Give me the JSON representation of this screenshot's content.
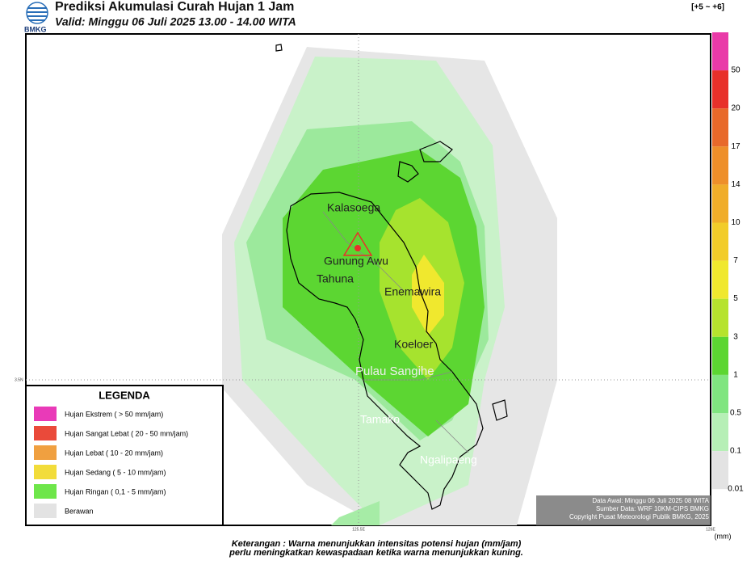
{
  "header": {
    "title": "Prediksi Akumulasi Curah Hujan 1 Jam",
    "valid": "Valid: Minggu 06 Juli 2025 13.00 - 14.00 WITA",
    "logo_text": "BMKG",
    "offset": "[+5 ~ +6]"
  },
  "map": {
    "places": [
      "Kalasoega",
      "Gunung Awu",
      "Tahuna",
      "Enemawira",
      "Koeloer",
      "Pulau Sangihe",
      "Tamako",
      "Ngalipaeng"
    ],
    "grid_labels": {
      "lat": "3.5N",
      "lon": [
        "125.5E",
        "126E"
      ]
    }
  },
  "color_scale": {
    "unit": "(mm)",
    "levels": [
      {
        "label": 50,
        "color": "#e93aa8"
      },
      {
        "label": 20,
        "color": "#e8302a"
      },
      {
        "label": 17,
        "color": "#e8692a"
      },
      {
        "label": 14,
        "color": "#ee8f2a"
      },
      {
        "label": 10,
        "color": "#f0ad2a"
      },
      {
        "label": 7,
        "color": "#f2cc2a"
      },
      {
        "label": 5,
        "color": "#f0e82e"
      },
      {
        "label": 3,
        "color": "#b6e32e"
      },
      {
        "label": 1,
        "color": "#5cd632"
      },
      {
        "label": 0.5,
        "color": "#80e580"
      },
      {
        "label": 0.1,
        "color": "#b6efb6"
      },
      {
        "label": 0.01,
        "color": "#e3e3e3"
      }
    ]
  },
  "legend": {
    "title": "LEGENDA",
    "items": [
      {
        "label": "Hujan Ekstrem ( > 50 mm/jam)",
        "color": "#e93ab8"
      },
      {
        "label": "Hujan Sangat Lebat ( 20 - 50 mm/jam)",
        "color": "#ea4a3a"
      },
      {
        "label": "Hujan Lebat ( 10 - 20 mm/jam)",
        "color": "#f0a040"
      },
      {
        "label": "Hujan Sedang ( 5 - 10 mm/jam)",
        "color": "#f2dc3a"
      },
      {
        "label": "Hujan Ringan ( 0,1 - 5 mm/jam)",
        "color": "#6ee64a"
      },
      {
        "label": "Berawan",
        "color": "#e3e3e3"
      }
    ]
  },
  "info": [
    "Data Awal: Minggu 06 Juli 2025 08 WITA",
    "Sumber Data: WRF 10KM-CIPS BMKG",
    "Copyright Pusat Meteorologi Publik BMKG, 2025"
  ],
  "footer": [
    "Keterangan : Warna menunjukkan intensitas potensi hujan (mm/jam)",
    "perlu meningkatkan kewaspadaan ketika warna menunjukkan kuning."
  ]
}
